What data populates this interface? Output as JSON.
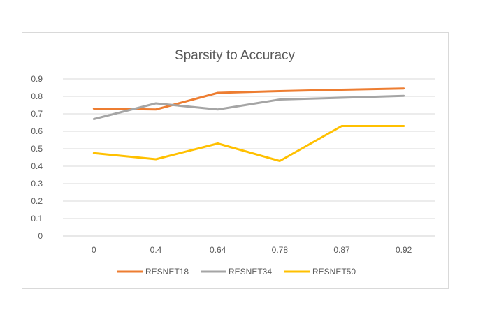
{
  "chart_data": {
    "type": "line",
    "title": "Sparsity to Accuracy",
    "xlabel": "",
    "ylabel": "",
    "categories": [
      "0",
      "0.4",
      "0.64",
      "0.78",
      "0.87",
      "0.92"
    ],
    "ylim": [
      0,
      0.9
    ],
    "yticks": [
      "0",
      "0.1",
      "0.2",
      "0.3",
      "0.4",
      "0.5",
      "0.6",
      "0.7",
      "0.8",
      "0.9"
    ],
    "grid": true,
    "legend_position": "bottom",
    "series": [
      {
        "name": "RESNET18",
        "color": "#ED7D31",
        "values": [
          0.73,
          0.725,
          0.82,
          0.83,
          0.838,
          0.845
        ]
      },
      {
        "name": "RESNET34",
        "color": "#A5A5A5",
        "values": [
          0.67,
          0.76,
          0.725,
          0.782,
          0.792,
          0.803
        ]
      },
      {
        "name": "RESNET50",
        "color": "#FFC000",
        "values": [
          0.475,
          0.44,
          0.53,
          0.43,
          0.63,
          0.63
        ]
      }
    ]
  }
}
